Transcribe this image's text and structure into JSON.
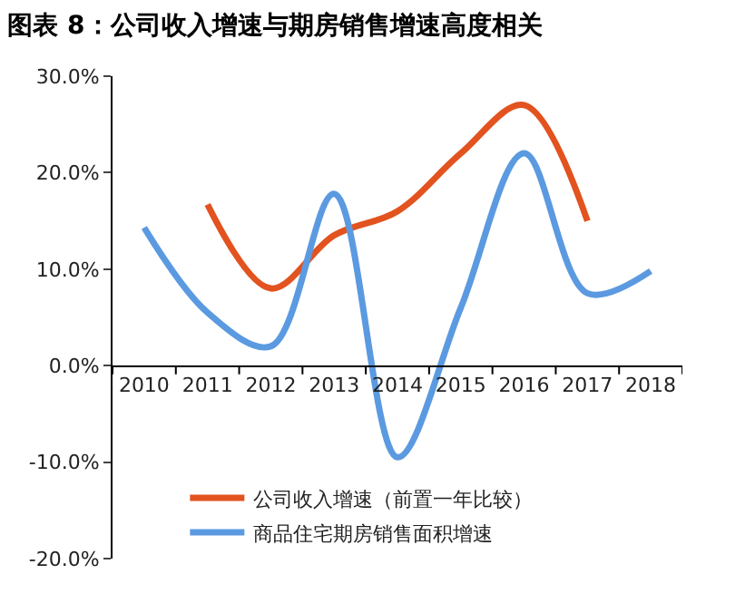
{
  "chart_data": {
    "type": "line",
    "title": "图表 8：公司收入增速与期房销售增速高度相关",
    "categories": [
      "2010",
      "2011",
      "2012",
      "2013",
      "2014",
      "2015",
      "2016",
      "2017",
      "2018"
    ],
    "series": [
      {
        "name": "公司收入增速（前置一年比较）",
        "color": "#e2531f",
        "values": [
          null,
          16.7,
          8.0,
          13.5,
          16.0,
          22.0,
          27.0,
          15.0,
          null
        ]
      },
      {
        "name": "商品住宅期房销售面积增速",
        "color": "#5b9ae0",
        "values": [
          14.3,
          5.5,
          2.0,
          17.8,
          -9.5,
          6.0,
          22.0,
          7.5,
          9.8
        ]
      }
    ],
    "ylim": [
      -20,
      30
    ],
    "yticks": [
      {
        "value": -20,
        "label": "-20.0%"
      },
      {
        "value": -10,
        "label": "-10.0%"
      },
      {
        "value": 0,
        "label": "0.0%"
      },
      {
        "value": 10,
        "label": "10.0%"
      },
      {
        "value": 20,
        "label": "20.0%"
      },
      {
        "value": 30,
        "label": "30.0%"
      }
    ],
    "legend": "bottom left",
    "marker": "none",
    "line_style": "solid"
  }
}
